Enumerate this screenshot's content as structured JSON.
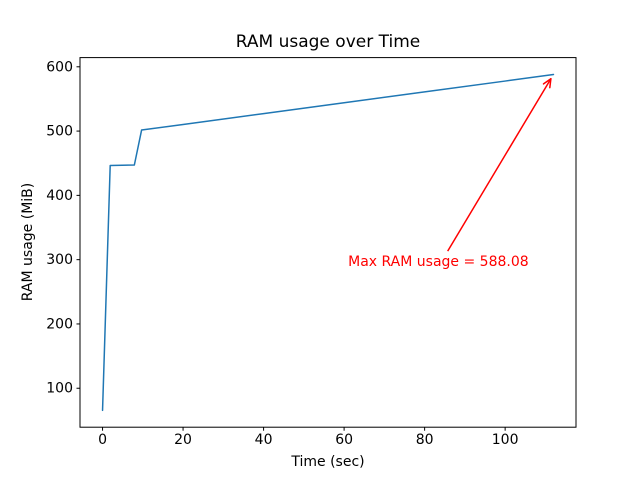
{
  "chart_data": {
    "type": "line",
    "title": "RAM usage over Time",
    "xlabel": "Time (sec)",
    "ylabel": "RAM usage (MiB)",
    "series": [
      {
        "name": "RAM usage",
        "x": [
          0,
          1.9,
          7.9,
          9.7,
          20,
          40,
          60,
          80,
          100,
          112
        ],
        "y": [
          65.6,
          446.5,
          447.2,
          501.6,
          510.3,
          527.2,
          544.1,
          560.9,
          577.8,
          588.08
        ]
      }
    ],
    "xticks": [
      0,
      20,
      40,
      60,
      80,
      100
    ],
    "yticks": [
      100,
      200,
      300,
      400,
      500,
      600
    ],
    "xlim": [
      -5.6,
      117.6
    ],
    "ylim": [
      39.4,
      614.3
    ],
    "grid": false,
    "legend": "none",
    "line_color": "#1f77b4",
    "axis_color": "#000000",
    "background_color": "#ffffff",
    "max_ram_value": 588.08,
    "annotation": {
      "text": "Max RAM usage = 588.08",
      "color": "#ff0000",
      "xy": [
        112,
        588.08
      ],
      "xytext": [
        61,
        290
      ]
    }
  }
}
